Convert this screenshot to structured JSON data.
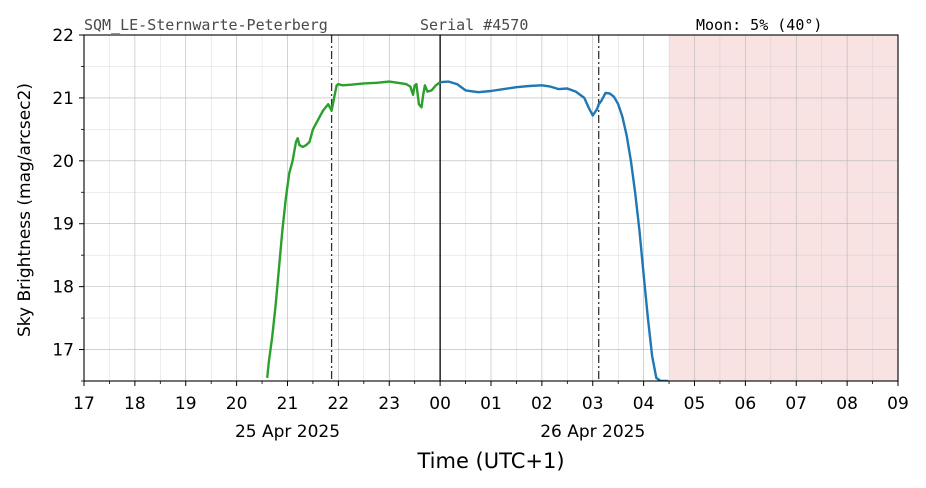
{
  "header": {
    "station": "SQM_LE-Sternwarte-Peterberg",
    "serial": "Serial #4570",
    "moon": "Moon: 5% (40°)"
  },
  "chart_data": {
    "type": "line",
    "xlabel": "Time (UTC+1)",
    "ylabel": "Sky Brightness (mag/arcsec2)",
    "xlim": [
      "17:00",
      "09:00"
    ],
    "ylim": [
      16.5,
      22
    ],
    "x_tick_labels": [
      "17",
      "18",
      "19",
      "20",
      "21",
      "22",
      "23",
      "00",
      "01",
      "02",
      "03",
      "04",
      "05",
      "06",
      "07",
      "08",
      "09"
    ],
    "y_tick_labels": [
      "17",
      "18",
      "19",
      "20",
      "21",
      "22"
    ],
    "date_labels": [
      {
        "label": "25 Apr 2025",
        "at": "21:00"
      },
      {
        "label": "26 Apr 2025",
        "at": "03:00"
      }
    ],
    "grid": true,
    "vlines": [
      {
        "at": "21:52",
        "style": "dashdot"
      },
      {
        "at": "00:00",
        "style": "solid"
      },
      {
        "at": "03:07",
        "style": "dashdot"
      }
    ],
    "shaded_region": {
      "from": "04:30",
      "to": "09:00",
      "color": "#f8e2e2"
    },
    "series": [
      {
        "color": "#2ca02c",
        "x": [
          "20:36",
          "20:38",
          "20:42",
          "20:46",
          "20:50",
          "20:54",
          "20:58",
          "21:02",
          "21:06",
          "21:10",
          "21:12",
          "21:14",
          "21:18",
          "21:22",
          "21:26",
          "21:30",
          "21:36",
          "21:42",
          "21:48",
          "21:52",
          "21:55",
          "21:58",
          "22:00",
          "22:02",
          "22:05",
          "22:15",
          "22:30",
          "22:45",
          "23:00",
          "23:10",
          "23:20",
          "23:25",
          "23:28",
          "23:30",
          "23:32",
          "23:35",
          "23:38",
          "23:40",
          "23:42",
          "23:45",
          "23:50",
          "23:55",
          "00:00"
        ],
        "values": [
          16.55,
          16.8,
          17.2,
          17.7,
          18.3,
          18.9,
          19.4,
          19.8,
          20.0,
          20.3,
          20.36,
          20.25,
          20.22,
          20.25,
          20.3,
          20.5,
          20.65,
          20.8,
          20.9,
          20.8,
          21.0,
          21.2,
          21.22,
          21.21,
          21.2,
          21.21,
          21.23,
          21.24,
          21.26,
          21.24,
          21.22,
          21.18,
          21.05,
          21.2,
          21.22,
          20.9,
          20.85,
          21.05,
          21.2,
          21.1,
          21.12,
          21.2,
          21.25
        ]
      },
      {
        "color": "#1f77b4",
        "x": [
          "00:00",
          "00:10",
          "00:20",
          "00:30",
          "00:45",
          "01:00",
          "01:15",
          "01:30",
          "01:45",
          "02:00",
          "02:10",
          "02:20",
          "02:30",
          "02:40",
          "02:50",
          "02:55",
          "03:00",
          "03:05",
          "03:07",
          "03:10",
          "03:15",
          "03:20",
          "03:25",
          "03:30",
          "03:35",
          "03:40",
          "03:45",
          "03:50",
          "03:55",
          "04:00",
          "04:05",
          "04:10",
          "04:15",
          "04:20",
          "04:25",
          "04:29"
        ],
        "values": [
          21.25,
          21.26,
          21.22,
          21.12,
          21.09,
          21.11,
          21.14,
          21.17,
          21.19,
          21.2,
          21.18,
          21.14,
          21.15,
          21.1,
          21.0,
          20.85,
          20.72,
          20.82,
          20.9,
          20.95,
          21.08,
          21.07,
          21.02,
          20.9,
          20.7,
          20.4,
          20.0,
          19.5,
          18.9,
          18.2,
          17.5,
          16.9,
          16.55,
          16.5,
          16.5,
          16.5
        ]
      }
    ]
  }
}
